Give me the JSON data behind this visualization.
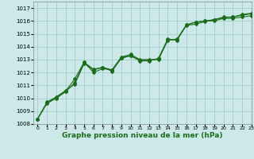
{
  "title": "Graphe pression niveau de la mer (hPa)",
  "bg_color": "#cce8e8",
  "grid_color": "#aacfcf",
  "line_color": "#1a6e1a",
  "xlim": [
    -0.5,
    23
  ],
  "ylim": [
    1008,
    1017.5
  ],
  "yticks": [
    1008,
    1009,
    1010,
    1011,
    1012,
    1013,
    1014,
    1015,
    1016,
    1017
  ],
  "xticks": [
    0,
    1,
    2,
    3,
    4,
    5,
    6,
    7,
    8,
    9,
    10,
    11,
    12,
    13,
    14,
    15,
    16,
    17,
    18,
    19,
    20,
    21,
    22,
    23
  ],
  "series1_x": [
    0,
    1,
    2,
    3,
    4,
    5,
    6,
    7,
    8,
    9,
    10,
    11,
    12,
    13,
    14,
    15,
    16,
    17,
    18,
    19,
    20,
    21,
    22,
    23
  ],
  "series1_y": [
    1008.4,
    1009.7,
    1010.1,
    1010.6,
    1011.1,
    1012.7,
    1012.2,
    1012.4,
    1012.1,
    1013.1,
    1013.3,
    1012.9,
    1012.9,
    1013.1,
    1014.6,
    1014.5,
    1015.7,
    1015.9,
    1016.0,
    1016.1,
    1016.3,
    1016.3,
    1016.5,
    1016.6
  ],
  "series2_x": [
    0,
    1,
    2,
    3,
    4,
    5,
    6,
    7,
    8,
    9,
    10,
    11,
    12,
    13,
    14,
    15,
    16,
    17,
    18,
    19,
    20,
    21,
    22,
    23
  ],
  "series2_y": [
    1008.4,
    1009.65,
    1010.05,
    1010.55,
    1011.5,
    1012.8,
    1012.25,
    1012.4,
    1012.2,
    1013.15,
    1013.3,
    1012.95,
    1012.95,
    1013.05,
    1014.55,
    1014.55,
    1015.65,
    1015.75,
    1015.95,
    1016.1,
    1016.25,
    1016.3,
    1016.45,
    1016.55
  ],
  "series3_x": [
    0,
    1,
    2,
    3,
    4,
    5,
    6,
    7,
    8,
    9,
    10,
    11,
    12,
    13,
    14,
    15,
    16,
    17,
    18,
    19,
    20,
    21,
    22,
    23
  ],
  "series3_y": [
    1008.4,
    1009.6,
    1010.0,
    1010.5,
    1011.2,
    1012.8,
    1012.0,
    1012.3,
    1012.2,
    1013.2,
    1013.4,
    1013.0,
    1013.0,
    1013.0,
    1014.5,
    1014.6,
    1015.7,
    1015.9,
    1016.0,
    1016.0,
    1016.2,
    1016.2,
    1016.3,
    1016.4
  ],
  "ylabel_fontsize": 5.5,
  "xlabel_fontsize": 6.5
}
